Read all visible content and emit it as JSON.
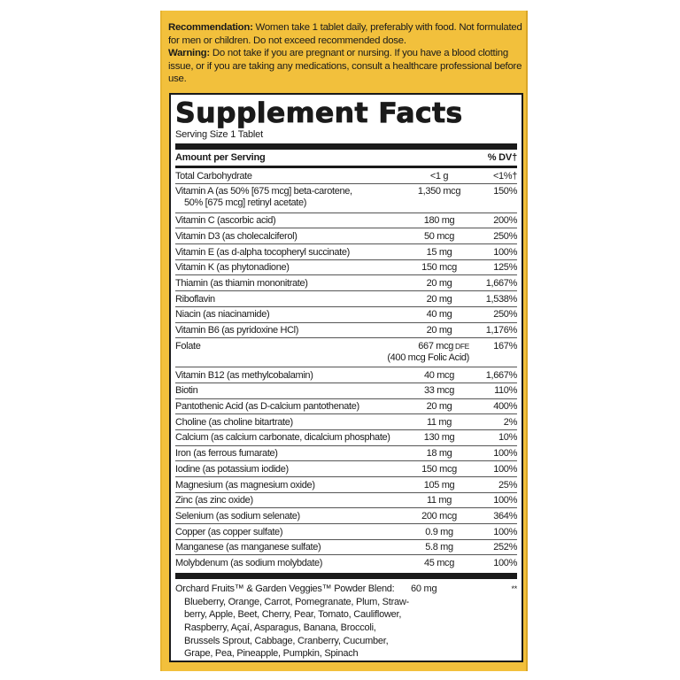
{
  "info": {
    "recommendation_label": "Recommendation:",
    "recommendation_text": " Women take 1 tablet daily, preferably with food. Not formulated for men or children. Do not exceed recommended dose.",
    "warning_label": "Warning:",
    "warning_text": " Do not take if you are pregnant or nursing. If you have a blood clotting issue, or if you are taking any medications, consult a healthcare professional before use."
  },
  "facts": {
    "title": "Supplement Facts",
    "serving_size": "Serving Size 1 Tablet",
    "header_amount": "Amount per Serving",
    "header_dv": "% DV†",
    "rows": [
      {
        "name": "Total Carbohydrate",
        "amount": "<1 g",
        "dv": "<1%†"
      },
      {
        "name": "Vitamin A (as 50% [675 mcg] beta-carotene,",
        "name2": "50% [675 mcg] retinyl acetate)",
        "amount": "1,350 mcg",
        "dv": "150%"
      },
      {
        "name": "Vitamin C (ascorbic acid)",
        "amount": "180 mg",
        "dv": "200%"
      },
      {
        "name": "Vitamin D3 (as cholecalciferol)",
        "amount": "50 mcg",
        "dv": "250%"
      },
      {
        "name": "Vitamin E (as d-alpha tocopheryl succinate)",
        "amount": "15 mg",
        "dv": "100%"
      },
      {
        "name": "Vitamin K (as phytonadione)",
        "amount": "150 mcg",
        "dv": "125%"
      },
      {
        "name": "Thiamin (as thiamin mononitrate)",
        "amount": "20 mg",
        "dv": "1,667%"
      },
      {
        "name": "Riboflavin",
        "amount": "20 mg",
        "dv": "1,538%"
      },
      {
        "name": "Niacin (as niacinamide)",
        "amount": "40 mg",
        "dv": "250%"
      },
      {
        "name": "Vitamin B6 (as pyridoxine HCl)",
        "amount": "20 mg",
        "dv": "1,176%"
      },
      {
        "name": "Folate",
        "amount": "667 mcg",
        "amount_suffix": " DFE",
        "amount2": "(400 mcg Folic Acid)",
        "dv": "167%"
      },
      {
        "name": "Vitamin B12 (as methylcobalamin)",
        "amount": "40 mcg",
        "dv": "1,667%"
      },
      {
        "name": "Biotin",
        "amount": "33 mcg",
        "dv": "110%"
      },
      {
        "name": "Pantothenic Acid (as D-calcium pantothenate)",
        "amount": "20 mg",
        "dv": "400%"
      },
      {
        "name": "Choline (as choline bitartrate)",
        "amount": "11 mg",
        "dv": "2%"
      },
      {
        "name": "Calcium (as calcium carbonate, dicalcium phosphate)",
        "amount": "130 mg",
        "dv": "10%"
      },
      {
        "name": "Iron (as ferrous fumarate)",
        "amount": "18 mg",
        "dv": "100%"
      },
      {
        "name": "Iodine (as potassium iodide)",
        "amount": "150 mcg",
        "dv": "100%"
      },
      {
        "name": "Magnesium (as magnesium oxide)",
        "amount": "105 mg",
        "dv": "25%"
      },
      {
        "name": "Zinc (as zinc oxide)",
        "amount": "11 mg",
        "dv": "100%"
      },
      {
        "name": "Selenium (as sodium selenate)",
        "amount": "200 mcg",
        "dv": "364%"
      },
      {
        "name": "Copper (as copper sulfate)",
        "amount": "0.9 mg",
        "dv": "100%"
      },
      {
        "name": "Manganese (as manganese sulfate)",
        "amount": "5.8 mg",
        "dv": "252%"
      },
      {
        "name": "Molybdenum (as sodium molybdate)",
        "amount": "45 mcg",
        "dv": "100%"
      }
    ],
    "blend": {
      "name": "Orchard Fruits™ & Garden Veggies™ Powder Blend:",
      "ingredients": "Blueberry, Orange, Carrot, Pomegranate, Plum, Straw-berry, Apple, Beet, Cherry, Pear, Tomato, Cauliflower, Raspberry, Açaí, Asparagus, Banana, Broccoli, Brussels Sprout, Cabbage, Cranberry, Cucumber, Grape, Pea, Pineapple, Pumpkin, Spinach",
      "amount": "60 mg",
      "dv": "**"
    }
  },
  "colors": {
    "label_yellow": "#f2c03c",
    "ink": "#1a1a1a"
  }
}
